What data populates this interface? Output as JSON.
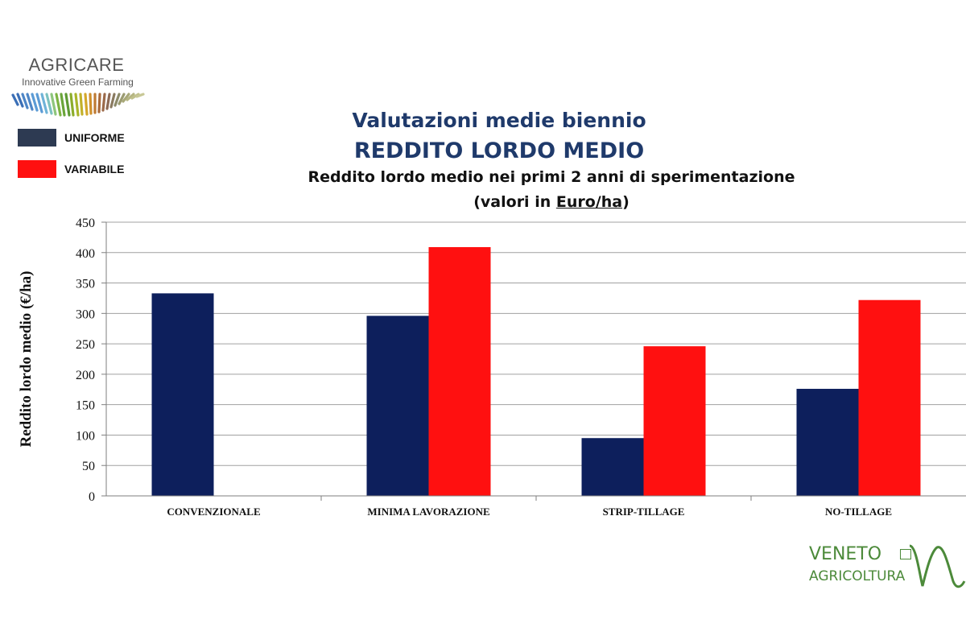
{
  "logos": {
    "agricare": {
      "name": "AGRICARE",
      "tagline": "Innovative Green Farming"
    },
    "veneto": {
      "line1": "VENETO",
      "line2": "AGRICOLTURA"
    }
  },
  "legend": [
    {
      "label": "UNIFORME",
      "color": "#0d1f5c"
    },
    {
      "label": "VARIABILE",
      "color": "#ff1010"
    }
  ],
  "header": {
    "title_line1": "Valutazioni medie biennio",
    "title_line2": "REDDITO LORDO MEDIO",
    "subtitle_line1": "Reddito lordo medio nei primi 2 anni di sperimentazione",
    "subtitle_line2_prefix": "(valori in ",
    "subtitle_line2_unit": "Euro/ha",
    "subtitle_line2_suffix": ")"
  },
  "chart_data": {
    "type": "bar",
    "categories": [
      "CONVENZIONALE",
      "MINIMA LAVORAZIONE",
      "STRIP-TILLAGE",
      "NO-TILLAGE"
    ],
    "series": [
      {
        "name": "UNIFORME",
        "values": [
          333,
          296,
          95,
          176
        ],
        "color": "#0d1f5c"
      },
      {
        "name": "VARIABILE",
        "values": [
          null,
          409,
          246,
          322
        ],
        "color": "#ff1010"
      }
    ],
    "ylabel": "Reddito lordo medio (€/ha)",
    "xlabel": "",
    "ylim": [
      0,
      450
    ],
    "yticks": [
      0,
      50,
      100,
      150,
      200,
      250,
      300,
      350,
      400,
      450
    ],
    "grid": true,
    "legend_position": "top-left"
  }
}
